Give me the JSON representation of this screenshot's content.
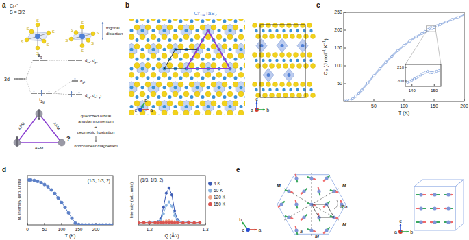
{
  "panel_labels": [
    "a",
    "b",
    "c",
    "d",
    "e"
  ],
  "panel_a": {
    "ion": "Cr³⁺",
    "spin": "S = 3/2",
    "ligands_left": [
      "S",
      "S",
      "S",
      "S",
      "S",
      "S"
    ],
    "ligands_right": [
      "S",
      "S",
      "S",
      "S",
      "S",
      "S"
    ],
    "distortion": [
      "trigonal",
      "distortion"
    ],
    "shell": "3d",
    "eg": [
      {
        "text": "e"
      },
      {
        "text": "g",
        "sub": true
      }
    ],
    "t2g": [
      {
        "text": "t"
      },
      {
        "text": "2g",
        "sub": true
      }
    ],
    "upper": [
      {
        "text": "d"
      },
      {
        "text": "xz",
        "sub": true
      },
      {
        "text": ", d"
      },
      {
        "text": "yz",
        "sub": true
      }
    ],
    "middle": [
      {
        "text": "d"
      },
      {
        "text": "z²",
        "sub": true
      }
    ],
    "lower": [
      {
        "text": "d"
      },
      {
        "text": "xy",
        "sub": true
      },
      {
        "text": ", d"
      },
      {
        "text": "x²−y²",
        "sub": true
      }
    ],
    "bonds": [
      "AFM",
      "AFM",
      "AFM"
    ],
    "unknown": "?",
    "reasoning": [
      "quenched orbital",
      "angular momentum",
      "+",
      "geometric frustration",
      "noncollinear magnetism"
    ]
  },
  "panel_b": {
    "title": [
      {
        "text": "Cr"
      },
      {
        "text": "1/4",
        "sub": true
      },
      {
        "text": "TaS"
      },
      {
        "text": "2",
        "sub": true
      }
    ],
    "axes_left": [
      "a",
      "b",
      "c"
    ],
    "axes_right": [
      "a",
      "b",
      "c"
    ]
  },
  "chart_data": [
    {
      "type": "line",
      "xlabel": "T (K)",
      "ylabel": [
        {
          "text": "C"
        },
        {
          "text": "P",
          "sub": true
        },
        {
          "text": " (J mol"
        },
        {
          "text": "−1",
          "sup": true
        },
        {
          "text": " K"
        },
        {
          "text": "−1",
          "sup": true
        },
        {
          "text": ")"
        }
      ],
      "x": [
        2,
        5,
        10,
        15,
        20,
        25,
        30,
        40,
        50,
        60,
        70,
        80,
        90,
        100,
        110,
        120,
        130,
        135,
        140,
        143,
        145,
        147,
        150,
        155,
        160,
        170,
        180,
        190,
        200
      ],
      "series": [
        {
          "color": "#6f93d6",
          "marker": "open_circle",
          "values": [
            0.1,
            0.5,
            3,
            8,
            15,
            23,
            32,
            52,
            72,
            92,
            110,
            127,
            143,
            157,
            170,
            181,
            191,
            196,
            201,
            205,
            207,
            205,
            208,
            212,
            216,
            223,
            230,
            236,
            242
          ]
        }
      ],
      "xlim": [
        0,
        200
      ],
      "ylim": [
        0,
        250
      ],
      "xticks": [
        50,
        100,
        150,
        200
      ],
      "yticks": [
        50,
        100,
        150,
        200,
        250
      ]
    },
    {
      "type": "line",
      "x": [
        138,
        139,
        140,
        141,
        142,
        143,
        144,
        145,
        146,
        147,
        148,
        149,
        150,
        151,
        152
      ],
      "series": [
        {
          "color": "#6f93d6",
          "marker": "open_circle",
          "values": [
            199,
            199.8,
            200.6,
            201.5,
            202.4,
            203.3,
            204.3,
            205.3,
            206.3,
            207,
            206.2,
            206,
            206.4,
            207,
            207.6
          ]
        }
      ],
      "xlim": [
        137,
        153
      ],
      "ylim": [
        196,
        212
      ],
      "xticks": [
        140,
        150
      ],
      "yticks": [
        200,
        210
      ]
    },
    {
      "type": "line",
      "title": "(1/3, 1/3, 2)",
      "xlabel": "T (K)",
      "ylabel": "Int. intensity (arb. units)",
      "x": [
        5,
        10,
        20,
        30,
        40,
        50,
        60,
        70,
        80,
        90,
        100,
        110,
        120,
        130,
        140,
        150,
        160,
        170,
        180,
        190,
        200,
        210,
        220,
        230,
        240,
        250
      ],
      "series": [
        {
          "color": "#5b7fc7",
          "marker": "circle",
          "values": [
            1.0,
            1.0,
            0.99,
            0.97,
            0.94,
            0.9,
            0.85,
            0.78,
            0.7,
            0.6,
            0.5,
            0.39,
            0.27,
            0.15,
            0.04,
            0.01,
            0,
            0,
            0,
            0,
            0,
            0,
            0,
            0,
            0,
            0
          ]
        }
      ],
      "xlim": [
        0,
        250
      ],
      "ylim": [
        0,
        1.1
      ],
      "xticks": [
        0,
        50,
        100,
        150,
        200
      ],
      "tick_labels": "x"
    },
    {
      "type": "line",
      "title": "(1/3, 1/3, 2)",
      "xlabel": "Q (Å⁻¹)",
      "ylabel": "Intensity (arb. units)",
      "x": [
        1.18,
        1.19,
        1.2,
        1.21,
        1.215,
        1.22,
        1.225,
        1.23,
        1.235,
        1.24,
        1.245,
        1.25,
        1.26,
        1.27,
        1.28,
        1.29
      ],
      "series": [
        {
          "name": "4 K",
          "color": "#3b5bb5",
          "marker": "circle",
          "values": [
            0.02,
            0.01,
            0.03,
            0.02,
            0.04,
            0.12,
            0.45,
            0.85,
            1.0,
            0.8,
            0.35,
            0.1,
            0.02,
            0.03,
            0.01,
            0.02
          ]
        },
        {
          "name": "60 K",
          "color": "#8ab4e0",
          "marker": "circle",
          "values": [
            0.01,
            0.02,
            0.01,
            0.02,
            0.03,
            0.08,
            0.27,
            0.5,
            0.6,
            0.48,
            0.22,
            0.06,
            0.02,
            0.01,
            0.02,
            0.01
          ]
        },
        {
          "name": "120 K",
          "color": "#f0a58a",
          "marker": "circle",
          "values": [
            0.02,
            0.01,
            0.02,
            0.01,
            0.02,
            0.03,
            0.04,
            0.06,
            0.07,
            0.05,
            0.04,
            0.02,
            0.01,
            0.02,
            0.01,
            0.02
          ]
        },
        {
          "name": "150 K",
          "color": "#d9534f",
          "marker": "circle",
          "values": [
            0.01,
            0.02,
            0.01,
            0.02,
            0.01,
            0.02,
            0.01,
            0.02,
            0.01,
            0.02,
            0.01,
            0.02,
            0.01,
            0.02,
            0.01,
            0.02
          ]
        }
      ],
      "xlim": [
        1.18,
        1.3
      ],
      "ylim": [
        -0.05,
        1.35
      ],
      "xticks": [
        1.2,
        1.3
      ],
      "tick_labels": "x",
      "legend": "right"
    }
  ],
  "panel_e": {
    "mirror": [
      "M",
      "M",
      "M",
      "M"
    ],
    "lattice": "a",
    "spacing": "√3a",
    "axes_left": [
      "a",
      "b",
      "c"
    ],
    "axes_right": [
      "a",
      "b",
      "c"
    ]
  }
}
